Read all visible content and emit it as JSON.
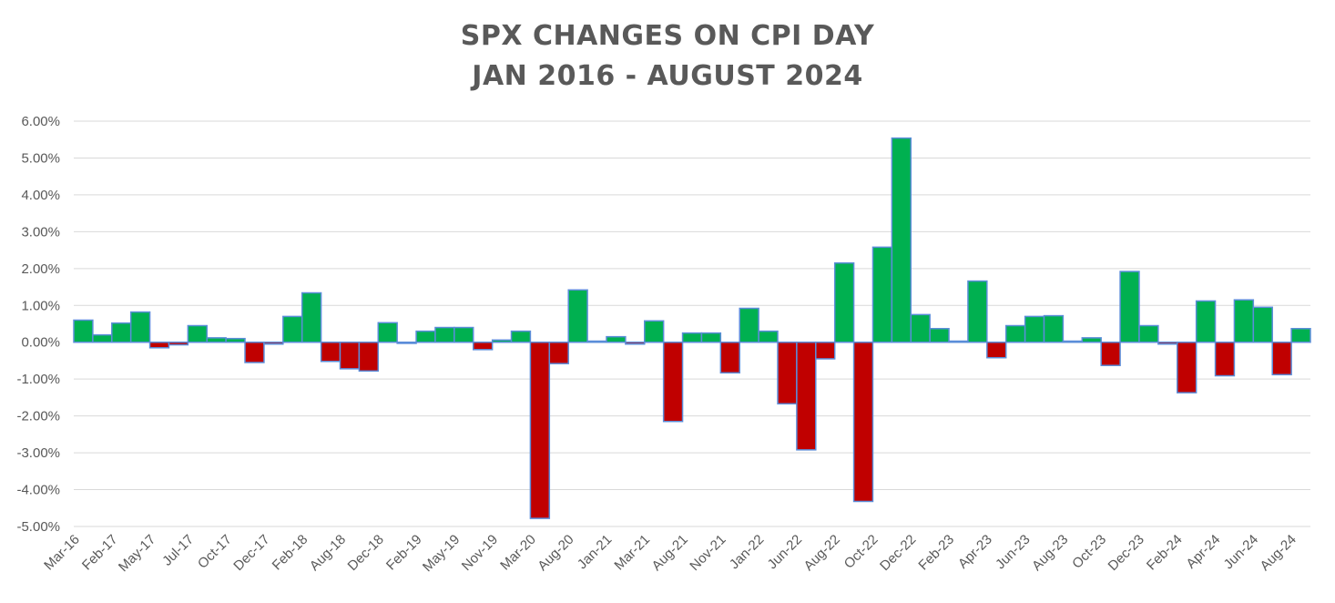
{
  "chart_data": {
    "type": "bar",
    "title": "SPX CHANGES ON CPI DAY",
    "subtitle": "JAN 2016 - AUGUST 2024",
    "xlabel": "",
    "ylabel": "",
    "ylim": [
      -0.05,
      0.06
    ],
    "yticks": [
      "6.00%",
      "5.00%",
      "4.00%",
      "3.00%",
      "2.00%",
      "1.00%",
      "0.00%",
      "-1.00%",
      "-2.00%",
      "-3.00%",
      "-4.00%",
      "-5.00%"
    ],
    "ytick_values": [
      0.06,
      0.05,
      0.04,
      0.03,
      0.02,
      0.01,
      0,
      -0.01,
      -0.02,
      -0.03,
      -0.04,
      -0.05
    ],
    "xtick_labels": [
      "Mar-16",
      "Feb-17",
      "May-17",
      "Jul-17",
      "Oct-17",
      "Dec-17",
      "Feb-18",
      "Aug-18",
      "Dec-18",
      "Feb-19",
      "May-19",
      "Nov-19",
      "Mar-20",
      "Aug-20",
      "Jan-21",
      "Mar-21",
      "Aug-21",
      "Nov-21",
      "Jan-22",
      "Jun-22",
      "Aug-22",
      "Oct-22",
      "Dec-22",
      "Feb-23",
      "Apr-23",
      "Jun-23",
      "Aug-23",
      "Oct-23",
      "Dec-23",
      "Feb-24",
      "Apr-24",
      "Jun-24",
      "Aug-24"
    ],
    "values": [
      0.006,
      0.002,
      0.0052,
      0.0082,
      -0.0015,
      -0.0007,
      0.0045,
      0.0012,
      0.001,
      -0.0055,
      -0.0005,
      0.007,
      0.0134,
      -0.0052,
      -0.0072,
      -0.0078,
      0.0053,
      -0.0003,
      0.003,
      0.004,
      0.004,
      -0.002,
      0.0006,
      0.003,
      -0.0478,
      -0.0058,
      0.0142,
      0.0003,
      0.0015,
      -0.0005,
      0.0058,
      -0.0215,
      0.0025,
      0.0025,
      -0.0083,
      0.0092,
      0.003,
      -0.0167,
      -0.0292,
      -0.0045,
      0.0215,
      -0.0432,
      0.0258,
      0.0554,
      0.0075,
      0.0037,
      0.0003,
      0.0166,
      -0.0042,
      0.0045,
      0.007,
      0.0072,
      0.0003,
      0.0012,
      -0.0063,
      0.0192,
      0.0045,
      -0.0005,
      -0.0137,
      0.0112,
      -0.0091,
      0.0115,
      0.0095,
      -0.0088,
      0.0037
    ],
    "colors": {
      "positive": "#00B050",
      "negative": "#C00000",
      "bar_border": "#5B8DD9",
      "gridline": "#D9D9D9",
      "text": "#595959"
    },
    "grid": true,
    "legend": "none"
  }
}
